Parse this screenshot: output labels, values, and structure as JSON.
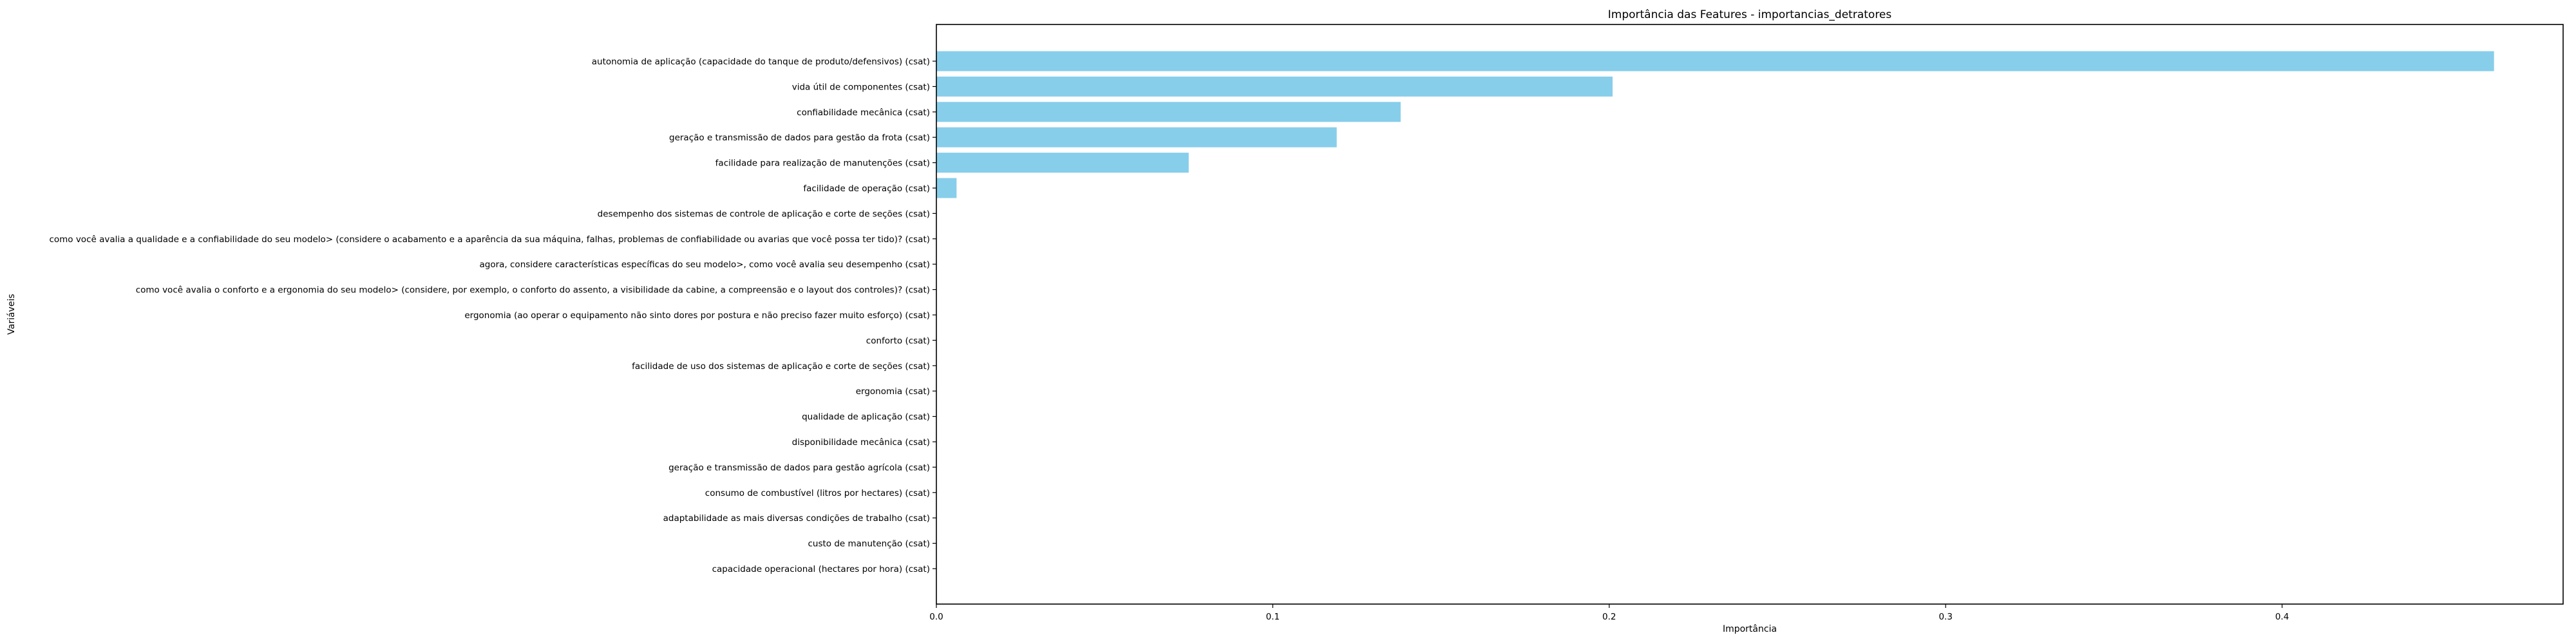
{
  "chart_data": {
    "type": "bar",
    "orientation": "horizontal",
    "title": "Importância das Features - importancias_detratores",
    "xlabel": "Importância",
    "ylabel": "Variáveis",
    "xlim": [
      0,
      0.48
    ],
    "xticks": [
      "0.0",
      "0.1",
      "0.2",
      "0.3",
      "0.4"
    ],
    "bar_color": "#87CEEB",
    "grid": false,
    "categories": [
      "autonomia de aplicação (capacidade do tanque de produto/defensivos) (csat)",
      "vida útil de componentes (csat)",
      "confiabilidade mecânica (csat)",
      "geração e transmissão de dados para gestão da frota (csat)",
      "facilidade para realização de manutenções (csat)",
      "facilidade de operação (csat)",
      "desempenho dos sistemas de controle de aplicação e corte de seções (csat)",
      "como você avalia a qualidade e a confiabilidade do seu modelo> (considere o acabamento e a aparência da sua máquina, falhas, problemas de confiabilidade ou avarias que você possa ter tido)? (csat)",
      "agora, considere características específicas do seu modelo>, como você avalia seu desempenho (csat)",
      "como você avalia o conforto e a ergonomia do seu modelo>  (considere, por exemplo, o conforto do assento, a visibilidade da cabine, a compreensão e o layout dos controles)? (csat)",
      "ergonomia (ao operar o equipamento não sinto dores por postura e não preciso fazer muito esforço) (csat)",
      "conforto (csat)",
      "facilidade de uso dos sistemas de aplicação e corte de seções (csat)",
      "ergonomia (csat)",
      "qualidade de aplicação (csat)",
      "disponibilidade mecânica (csat)",
      "geração e transmissão de dados para gestão agrícola (csat)",
      "consumo de combustível (litros por hectares) (csat)",
      "adaptabilidade as mais diversas condições de trabalho (csat)",
      "custo de manutenção (csat)",
      "capacidade operacional (hectares por hora) (csat)"
    ],
    "values": [
      0.463,
      0.201,
      0.138,
      0.119,
      0.075,
      0.006,
      0,
      0,
      0,
      0,
      0,
      0,
      0,
      0,
      0,
      0,
      0,
      0,
      0,
      0,
      0
    ]
  }
}
